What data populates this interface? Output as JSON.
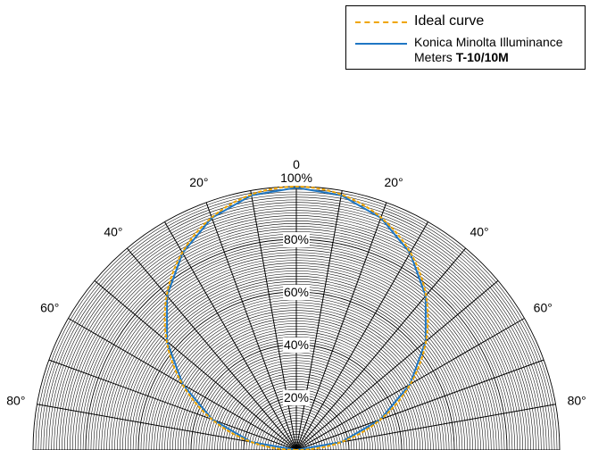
{
  "chart_data": {
    "type": "polar",
    "legend": {
      "placement": "top-right"
    },
    "series": [
      {
        "name": "Ideal curve",
        "color": "#f0a500",
        "style": "dashed",
        "function": "cosine",
        "angle_deg": [
          0,
          10,
          20,
          30,
          40,
          50,
          60,
          70,
          80,
          90
        ],
        "percent": [
          100,
          98.5,
          94,
          86.6,
          76.6,
          64.3,
          50,
          34.2,
          17.4,
          0
        ]
      },
      {
        "name": "Konica Minolta Illuminance Meters",
        "name_model": "T-10/10M",
        "color": "#1f77c4",
        "style": "solid",
        "angle_deg": [
          0,
          10,
          20,
          30,
          40,
          50,
          60,
          70,
          80,
          90
        ],
        "percent": [
          99.6,
          98.2,
          93.8,
          86.4,
          76.4,
          64.1,
          49.8,
          34,
          17.3,
          0
        ]
      }
    ],
    "radial_ticks": [
      "20%",
      "40%",
      "60%",
      "80%",
      "100%"
    ],
    "radial_values": [
      20,
      40,
      60,
      80,
      100
    ],
    "angle_ticks": [
      "20°",
      "40°",
      "60°",
      "80°"
    ],
    "angle_values": [
      20,
      40,
      60,
      80
    ],
    "zero_label": "0",
    "rlim": [
      0,
      100
    ],
    "theta_range_deg": [
      -90,
      90
    ],
    "grid": true
  }
}
